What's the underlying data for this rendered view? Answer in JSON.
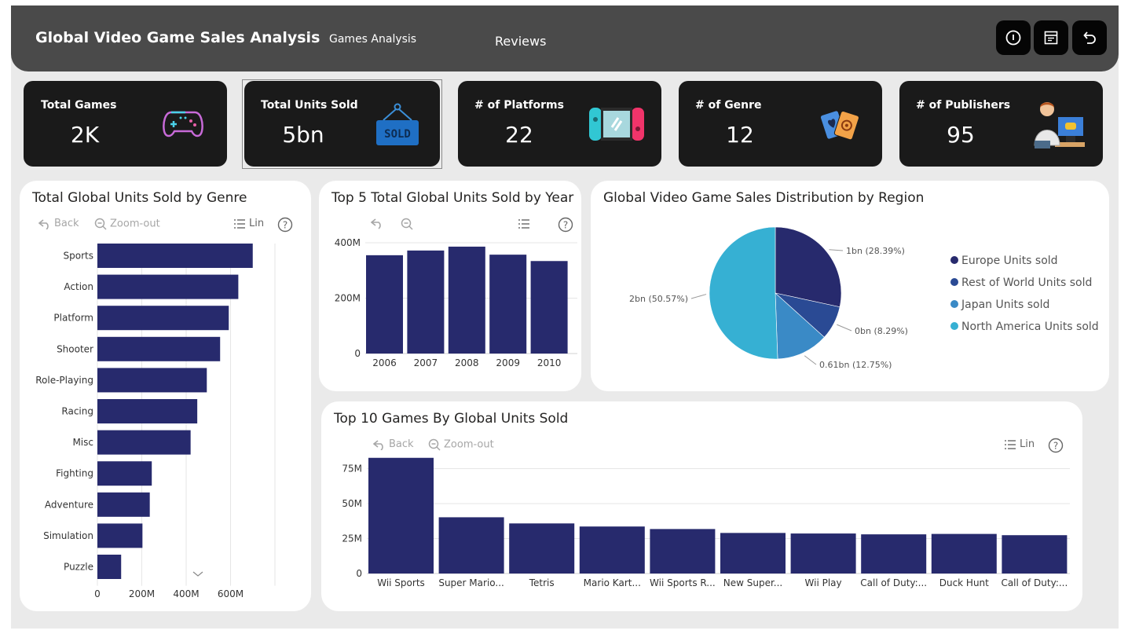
{
  "header": {
    "title": "Global Video Game Sales Analysis",
    "nav": [
      "Games Analysis",
      "Reviews"
    ],
    "buttons": [
      {
        "name": "info-button",
        "icon": "info-icon"
      },
      {
        "name": "filter-panel-button",
        "icon": "filter-panel-icon"
      },
      {
        "name": "back-button",
        "icon": "undo-arrow-icon"
      }
    ]
  },
  "kpis": [
    {
      "label": "Total Games",
      "value": "2K",
      "icon": "gamepad-icon"
    },
    {
      "label": "Total Units Sold",
      "value": "5bn",
      "icon": "sold-sign-icon"
    },
    {
      "label": "# of Platforms",
      "value": "22",
      "icon": "handheld-console-icon"
    },
    {
      "label": "# of Genre",
      "value": "12",
      "icon": "playing-cards-icon"
    },
    {
      "label": "# of Publishers",
      "value": "95",
      "icon": "gamer-person-icon"
    }
  ],
  "toolbar": {
    "back": "Back",
    "zoom_out": "Zoom-out",
    "lin": "Lin",
    "help": "?"
  },
  "colors": {
    "bar": "#272a6d",
    "pie": [
      "#272a6d",
      "#2a4a94",
      "#3a8ac6",
      "#36b0d3"
    ],
    "header": "#4a4a4a",
    "kpi": "#1a1a1a"
  },
  "chart_data": [
    {
      "type": "bar",
      "orientation": "horizontal",
      "title": "Total Global Units Sold by Genre",
      "categories": [
        "Sports",
        "Action",
        "Platform",
        "Shooter",
        "Role-Playing",
        "Racing",
        "Misc",
        "Fighting",
        "Adventure",
        "Simulation",
        "Puzzle"
      ],
      "values": [
        700,
        635,
        592,
        553,
        493,
        450,
        420,
        245,
        236,
        203,
        107
      ],
      "unit": "M",
      "xticks": [
        "0",
        "200M",
        "400M",
        "600M"
      ],
      "xlim": [
        0,
        800
      ],
      "grid": true
    },
    {
      "type": "bar",
      "title": "Top 5 Total Global Units Sold by Year",
      "categories": [
        "2006",
        "2007",
        "2008",
        "2009",
        "2010"
      ],
      "values": [
        355,
        372,
        386,
        357,
        334
      ],
      "unit": "M",
      "yticks": [
        "0",
        "200M",
        "400M"
      ],
      "ylim": [
        0,
        400
      ],
      "grid": true
    },
    {
      "type": "pie",
      "title": "Global Video Game Sales Distribution by Region",
      "legend_position": "right",
      "slices": [
        {
          "name": "Europe Units sold",
          "value": 28.39,
          "label": "1bn (28.39%)"
        },
        {
          "name": "Rest of World Units sold",
          "value": 8.29,
          "label": "0bn (8.29%)"
        },
        {
          "name": "Japan Units sold",
          "value": 12.75,
          "label": "0.61bn (12.75%)"
        },
        {
          "name": "North America Units sold",
          "value": 50.57,
          "label": "2bn (50.57%)"
        }
      ]
    },
    {
      "type": "bar",
      "title": "Top 10 Games By Global Units Sold",
      "categories": [
        "Wii Sports",
        "Super Mario...",
        "Tetris",
        "Mario Kart...",
        "Wii Sports R...",
        "New Super...",
        "Wii Play",
        "Call of Duty:...",
        "Duck Hunt",
        "Call of Duty:..."
      ],
      "values": [
        82.7,
        40.2,
        35.8,
        33.6,
        31.8,
        29.0,
        28.6,
        28.0,
        28.3,
        27.4
      ],
      "unit": "M",
      "yticks": [
        "0",
        "25M",
        "50M",
        "75M"
      ],
      "ylim": [
        0,
        82
      ],
      "grid": true
    }
  ]
}
